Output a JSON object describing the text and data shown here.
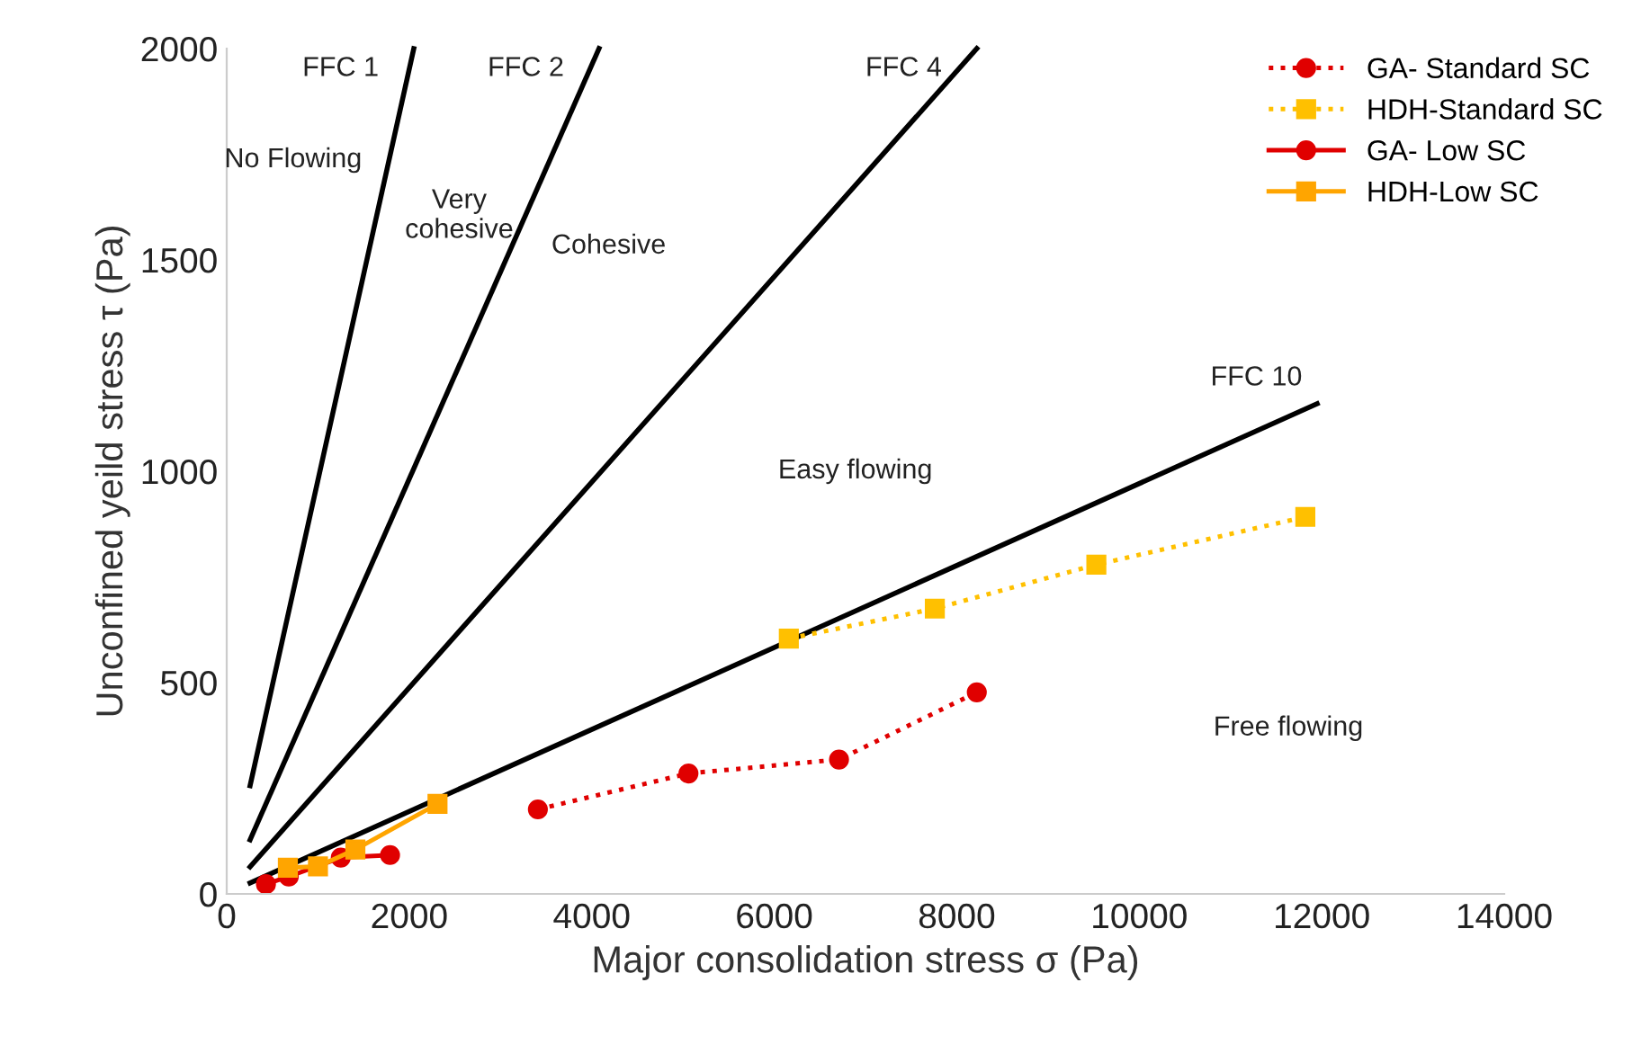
{
  "chart_data": {
    "type": "line",
    "xlabel": "Major consolidation stress σ (Pa)",
    "ylabel": "Unconfined yeild stress τ (Pa)",
    "xlim": [
      0,
      14000
    ],
    "xticks": [
      0,
      2000,
      4000,
      6000,
      8000,
      10000,
      12000,
      14000
    ],
    "ylim": [
      0,
      2000
    ],
    "yticks": [
      0,
      500,
      1000,
      1500,
      2000
    ],
    "grid": false,
    "legend": "top right",
    "series": [
      {
        "type": "line",
        "name": "FFC 1",
        "color": "#000000",
        "x": [
          256,
          2050
        ],
        "values": [
          256,
          2000
        ],
        "marker": "none",
        "line_style": "solid"
      },
      {
        "type": "line",
        "name": "FFC 2",
        "color": "#000000",
        "x": [
          256,
          4080
        ],
        "values": [
          128,
          2000
        ],
        "marker": "none",
        "line_style": "solid"
      },
      {
        "type": "line",
        "name": "FFC 4",
        "color": "#000000",
        "x": [
          256,
          8220
        ],
        "values": [
          64,
          2000
        ],
        "marker": "none",
        "line_style": "solid"
      },
      {
        "type": "line",
        "name": "FFC 10",
        "color": "#000000",
        "x": [
          256,
          11950
        ],
        "values": [
          26,
          1160
        ],
        "marker": "none",
        "line_style": "solid"
      },
      {
        "name": "GA- Standard SC",
        "color": "#e00000",
        "x": [
          3410,
          5060,
          6710,
          8220
        ],
        "values": [
          200,
          285,
          318,
          477
        ],
        "marker": "circle",
        "line_style": "dotted"
      },
      {
        "name": "HDH-Standard SC",
        "color": "#ffc000",
        "x": [
          6160,
          7760,
          9530,
          11820
        ],
        "values": [
          604,
          675,
          779,
          892
        ],
        "marker": "square",
        "line_style": "dotted"
      },
      {
        "name": "GA- Low SC",
        "color": "#e00000",
        "x": [
          430,
          680,
          1250,
          1790
        ],
        "values": [
          23,
          41,
          86,
          92
        ],
        "marker": "circle",
        "line_style": "solid"
      },
      {
        "name": "HDH-Low SC",
        "color": "#ffa500",
        "x": [
          670,
          1000,
          1410,
          2310
        ],
        "values": [
          62,
          65,
          105,
          213
        ],
        "marker": "square",
        "line_style": "solid"
      }
    ],
    "annotations": [
      "No Flowing",
      "Very\ncohesive",
      "Cohesive",
      "Easy flowing",
      "Free flowing"
    ]
  }
}
